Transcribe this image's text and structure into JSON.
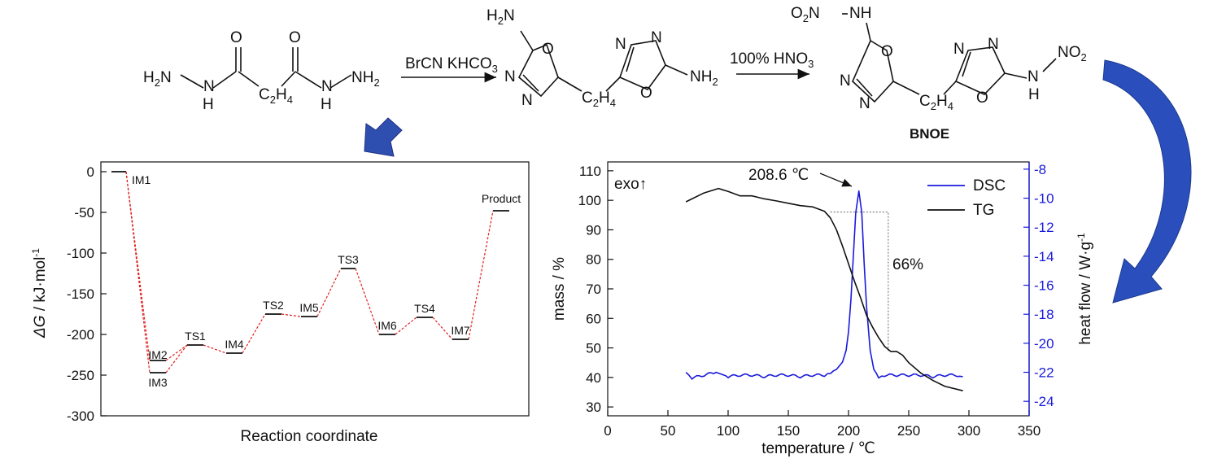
{
  "scheme": {
    "reactant": {
      "h2n": "H",
      "h2n_sub": "2",
      "h2n_n": "N",
      "nh_left": "H",
      "nh_right": "H",
      "n_left": "N",
      "n_right": "N",
      "nh2": "NH",
      "nh2_sub": "2",
      "o_left": "O",
      "o_right": "O",
      "c2h4": "C",
      "c2h4_sub1": "2",
      "c2h4_h": "H",
      "c2h4_sub2": "4"
    },
    "step1_reagent": {
      "text": "BrCN KHCO",
      "sub": "3"
    },
    "intermediate": {
      "h2n": "H",
      "h2n_sub": "2",
      "h2n_n": "N",
      "nh2": "NH",
      "nh2_sub": "2",
      "ring_o": "O",
      "ring_n": "N",
      "c2h4": "C",
      "c2h4_sub1": "2",
      "c2h4_h": "H",
      "c2h4_sub2": "4"
    },
    "step2_reagent": {
      "text": "100% HNO",
      "sub": "3"
    },
    "product": {
      "o2n": "O",
      "o2n_sub": "2",
      "o2n_rest": "N",
      "nh_top": "NH",
      "nh_right": "N",
      "h_right": "H",
      "no2": "NO",
      "no2_sub": "2",
      "ring_o": "O",
      "ring_n": "N",
      "c2h4": "C",
      "c2h4_sub1": "2",
      "c2h4_h": "H",
      "c2h4_sub2": "4"
    },
    "product_name": "BNOE"
  },
  "chart_data": [
    {
      "type": "line",
      "xlabel": "Reaction coordinate",
      "ylabel_italic": "ΔG",
      "ylabel_rest": " / kJ·mol",
      "ylabel_sup": "-1",
      "ylim": [
        -300,
        0
      ],
      "yticks": [
        "0",
        "-50",
        "-100",
        "-150",
        "-200",
        "-250",
        "-300"
      ],
      "line_color": "#e02020",
      "levels": [
        {
          "name": "IM1",
          "value": 0
        },
        {
          "name": "IM2",
          "value": -232
        },
        {
          "name": "IM3",
          "value": -247
        },
        {
          "name": "TS1",
          "value": -213
        },
        {
          "name": "IM4",
          "value": -223
        },
        {
          "name": "TS2",
          "value": -175
        },
        {
          "name": "IM5",
          "value": -178
        },
        {
          "name": "TS3",
          "value": -119
        },
        {
          "name": "IM6",
          "value": -200
        },
        {
          "name": "TS4",
          "value": -179
        },
        {
          "name": "IM7",
          "value": -206
        },
        {
          "name": "Product",
          "value": -48
        }
      ]
    },
    {
      "type": "line",
      "xlabel": "temperature / ℃",
      "ylabel": "mass / %",
      "ylabel2": "heat flow / W·g",
      "ylabel2_sup": "-1",
      "xlim": [
        0,
        350
      ],
      "ylim": [
        27,
        113
      ],
      "y2lim": [
        -25,
        -7.5
      ],
      "xticks": [
        "0",
        "50",
        "100",
        "150",
        "200",
        "250",
        "300",
        "350"
      ],
      "yticks": [
        "30",
        "40",
        "50",
        "60",
        "70",
        "80",
        "90",
        "100",
        "110"
      ],
      "y2ticks": [
        "-8",
        "-10",
        "-12",
        "-14",
        "-16",
        "-18",
        "-20",
        "-22",
        "-24"
      ],
      "annotations": {
        "exo": "exo↑",
        "peak": "208.6 ℃",
        "loss": "66%"
      },
      "legend": "top-right",
      "series": [
        {
          "name": "DSC",
          "color": "#1a1adc",
          "axis": "right",
          "x": [
            65,
            70,
            80,
            90,
            100,
            110,
            120,
            130,
            140,
            150,
            160,
            170,
            180,
            185,
            190,
            195,
            198,
            200,
            202,
            204,
            206,
            208.6,
            211,
            213,
            215,
            218,
            221,
            225,
            230,
            240,
            250,
            260,
            270,
            280,
            290,
            295
          ],
          "y": [
            -22,
            -22.4,
            -22.2,
            -22.0,
            -22.3,
            -22.2,
            -22.2,
            -22.3,
            -22.2,
            -22.2,
            -22.3,
            -22.2,
            -22.2,
            -22.0,
            -21.8,
            -21.3,
            -20.5,
            -19.2,
            -17.0,
            -14.0,
            -11.0,
            -9.5,
            -11.0,
            -14.5,
            -17.5,
            -20.5,
            -21.8,
            -22.3,
            -22.2,
            -22.2,
            -22.2,
            -22.2,
            -22.3,
            -22.2,
            -22.2,
            -22.3
          ]
        },
        {
          "name": "TG",
          "color": "#111111",
          "axis": "left",
          "x": [
            65,
            80,
            92,
            100,
            110,
            120,
            130,
            140,
            150,
            160,
            170,
            180,
            185,
            190,
            195,
            200,
            205,
            210,
            215,
            220,
            225,
            230,
            235,
            240,
            245,
            250,
            260,
            270,
            280,
            295
          ],
          "y": [
            99.5,
            102.5,
            104,
            103,
            101.5,
            101.5,
            100.5,
            99.8,
            99.0,
            98.2,
            97.8,
            96.3,
            94,
            90,
            84.5,
            78.5,
            72.5,
            67,
            61,
            57,
            53.5,
            50.5,
            48.8,
            48.8,
            47.5,
            45,
            41.5,
            39,
            37,
            35.5
          ]
        }
      ]
    }
  ]
}
